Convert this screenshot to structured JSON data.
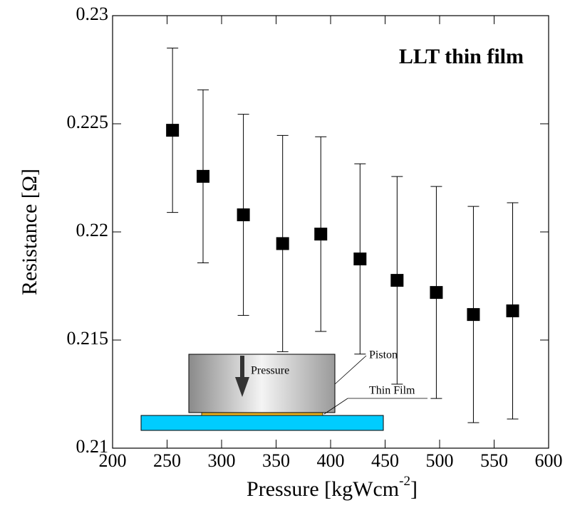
{
  "chart_data": {
    "type": "scatter",
    "annotation": "LLT thin film",
    "xlabel": "Pressure [kgWcm",
    "xlabel_sup": "-2",
    "xlabel_end": "]",
    "ylabel": "Resistance [Ω]",
    "x": [
      255,
      283,
      320,
      356,
      391,
      427,
      461,
      497,
      531,
      567
    ],
    "series": [
      {
        "color": "#000000",
        "values": [
          0.2247,
          0.22257,
          0.22079,
          0.21946,
          0.2199,
          0.21875,
          0.21776,
          0.2172,
          0.21618,
          0.21635
        ],
        "errors": [
          0.0038,
          0.004,
          0.00465,
          0.005,
          0.0045,
          0.0044,
          0.0048,
          0.0049,
          0.005,
          0.005
        ]
      }
    ],
    "xlim": [
      200,
      600
    ],
    "xticks": [
      200,
      250,
      300,
      350,
      400,
      450,
      500,
      550,
      600
    ],
    "ylim": [
      0.21,
      0.23
    ],
    "yticks": [
      0.21,
      0.215,
      0.22,
      0.225,
      0.23
    ],
    "inset": {
      "pressure": "Pressure",
      "piston": "Piston",
      "film": "Thin Film"
    }
  }
}
